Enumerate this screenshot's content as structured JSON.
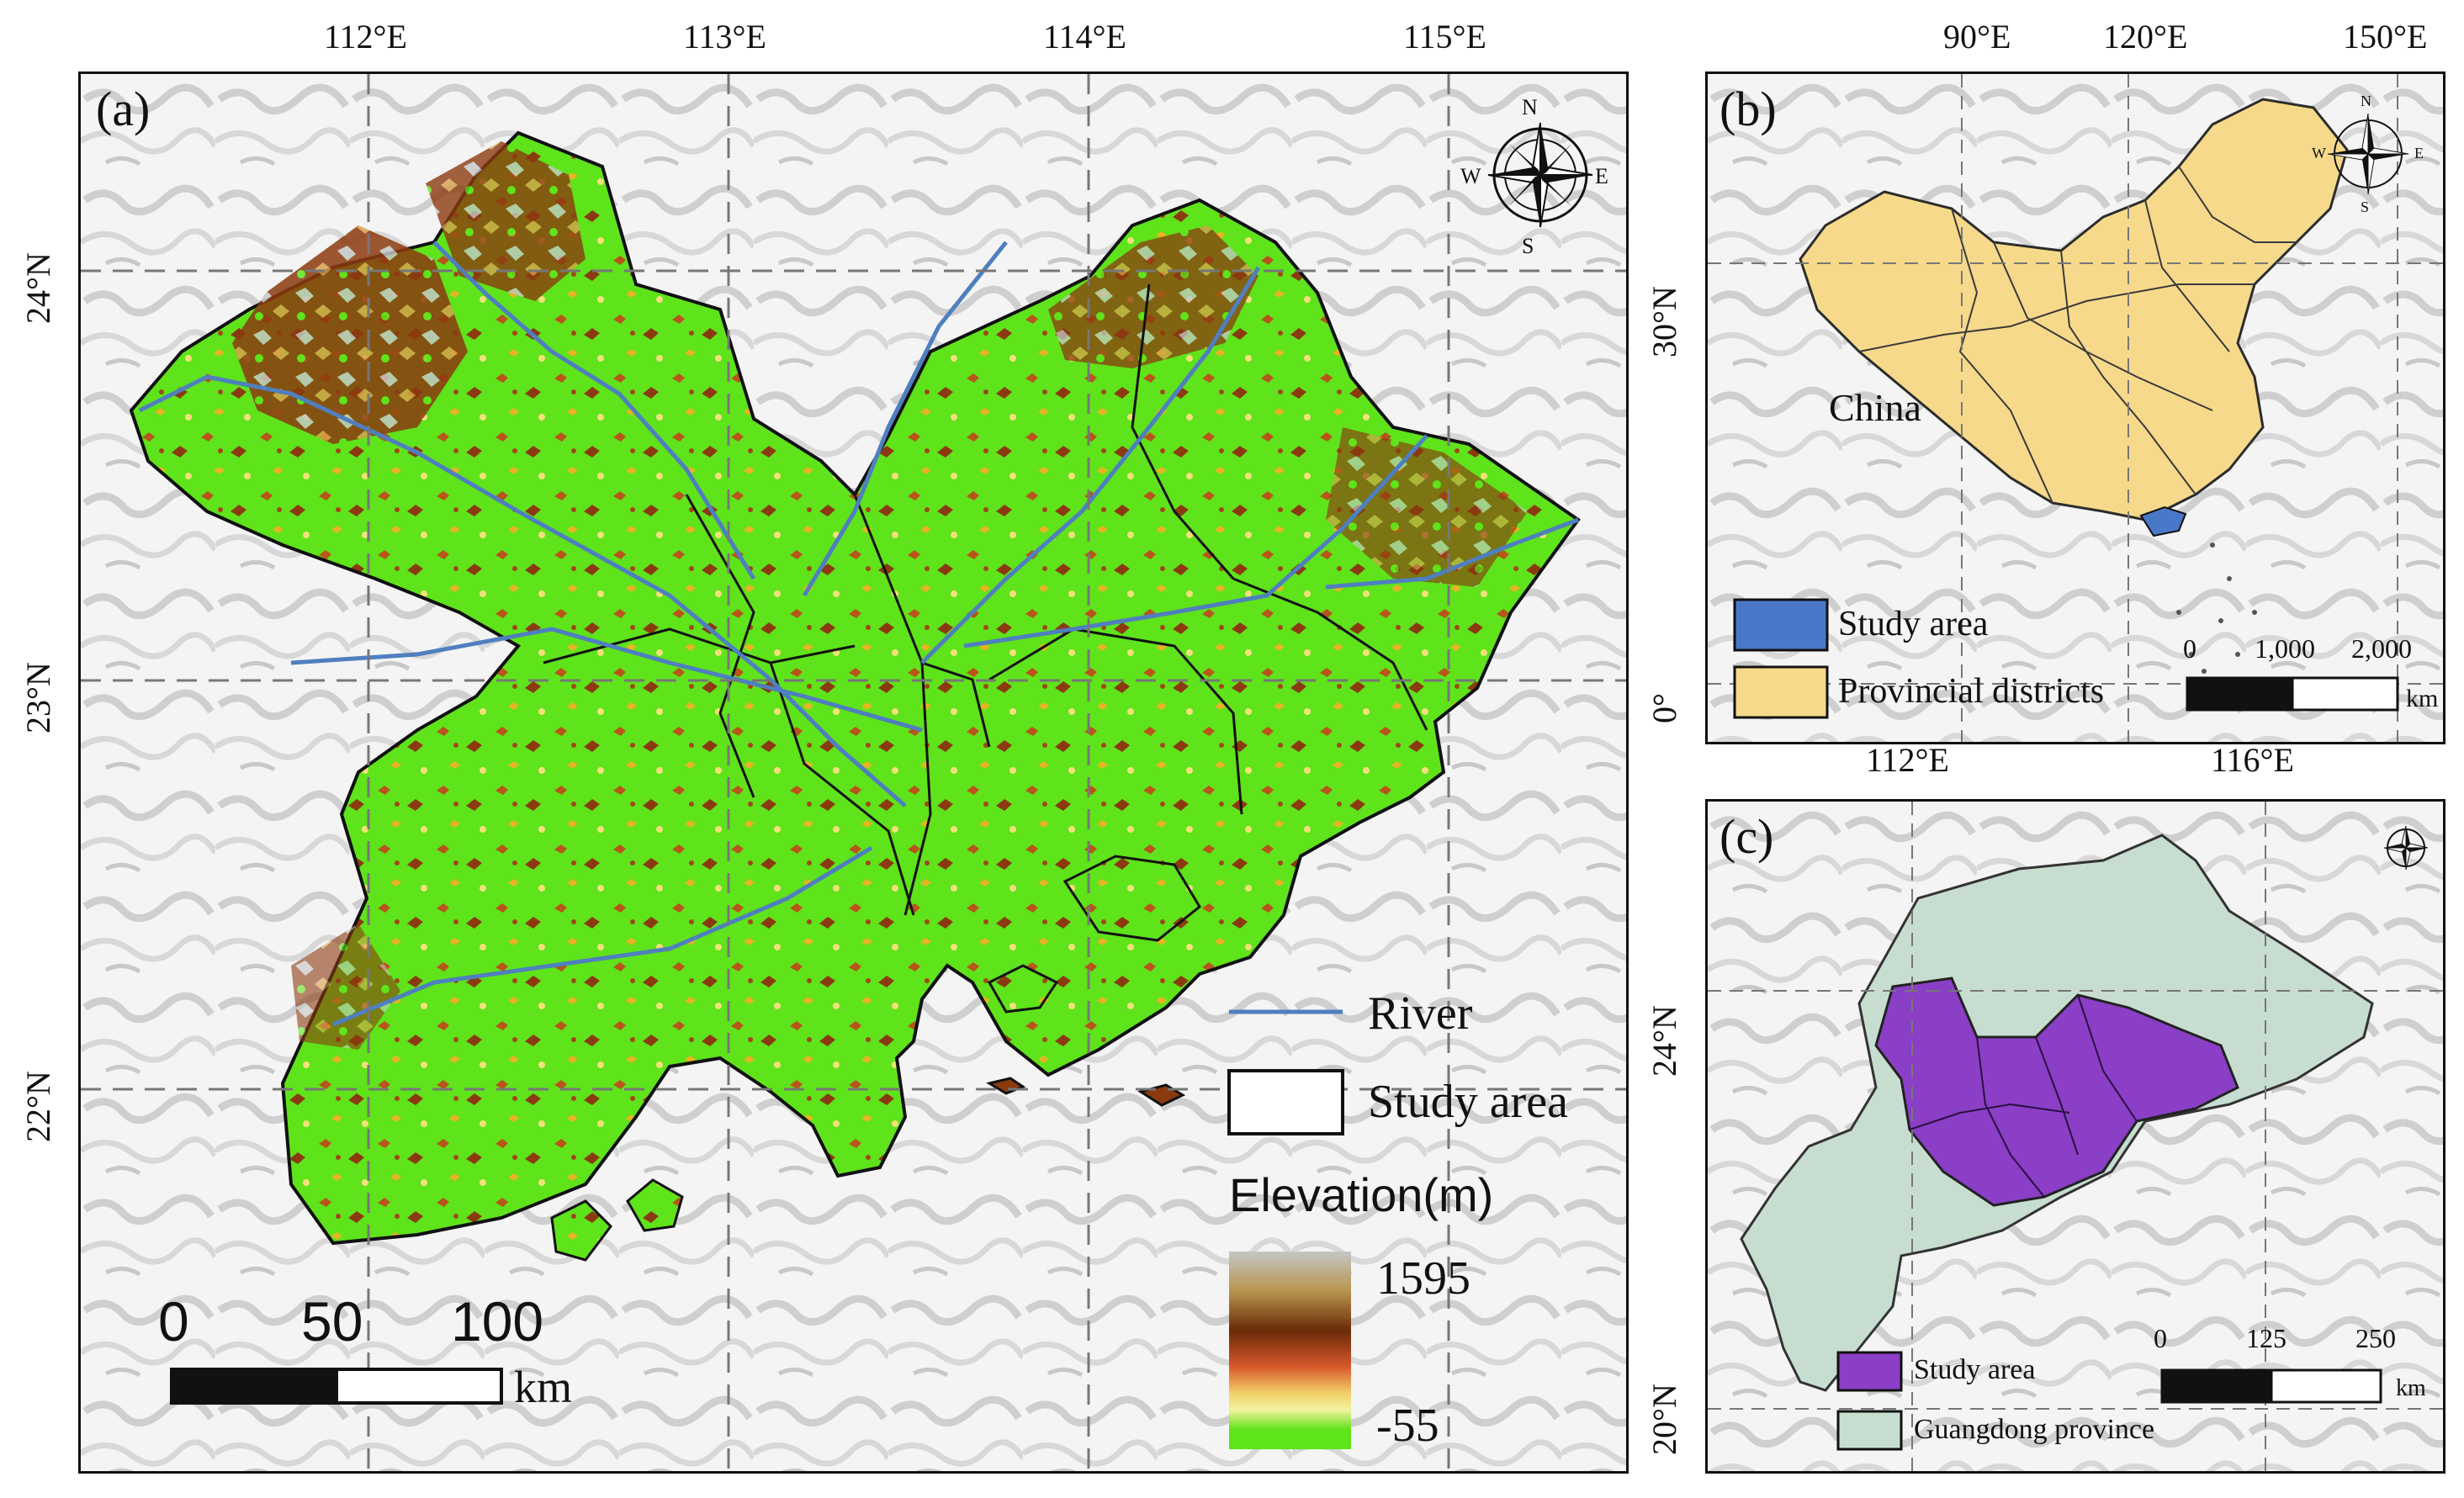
{
  "panel_a": {
    "label": "(a)",
    "lon_ticks": [
      "112°E",
      "113°E",
      "114°E",
      "115°E"
    ],
    "lat_ticks": [
      "24°N",
      "23°N",
      "22°N"
    ],
    "compass": {
      "n": "N",
      "s": "S",
      "e": "E",
      "w": "W"
    },
    "legend": {
      "river": "River",
      "study_area": "Study area",
      "elevation_title": "Elevation(m)",
      "elev_max": "1595",
      "elev_min": "-55"
    },
    "scalebar": {
      "t0": "0",
      "t1": "50",
      "t2": "100",
      "unit": "km"
    },
    "colors": {
      "river": "#4f7fbf",
      "lowland": "#5fe31a",
      "highland": "#8b3a0f",
      "peak": "#c4c6c4"
    }
  },
  "panel_b": {
    "label": "(b)",
    "lon_ticks": [
      "90°E",
      "120°E",
      "150°E"
    ],
    "lat_ticks": [
      "30°N",
      "0°"
    ],
    "country_label": "China",
    "compass": {
      "n": "N",
      "s": "S",
      "e": "E",
      "w": "W"
    },
    "legend": {
      "study_area": "Study area",
      "provincial": "Provincial districts"
    },
    "scalebar": {
      "t0": "0",
      "t1": "1,000",
      "t2": "2,000",
      "unit": "km"
    },
    "colors": {
      "study": "#4a78c8",
      "province": "#f6d98a"
    }
  },
  "panel_c": {
    "label": "(c)",
    "lon_ticks": [
      "112°E",
      "116°E"
    ],
    "lat_ticks": [
      "24°N",
      "20°N"
    ],
    "legend": {
      "study_area": "Study area",
      "guangdong": "Guangdong province"
    },
    "scalebar": {
      "t0": "0",
      "t1": "125",
      "t2": "250",
      "unit": "km"
    },
    "colors": {
      "study": "#8a3fc6",
      "guangdong": "#c7ddd0"
    }
  }
}
